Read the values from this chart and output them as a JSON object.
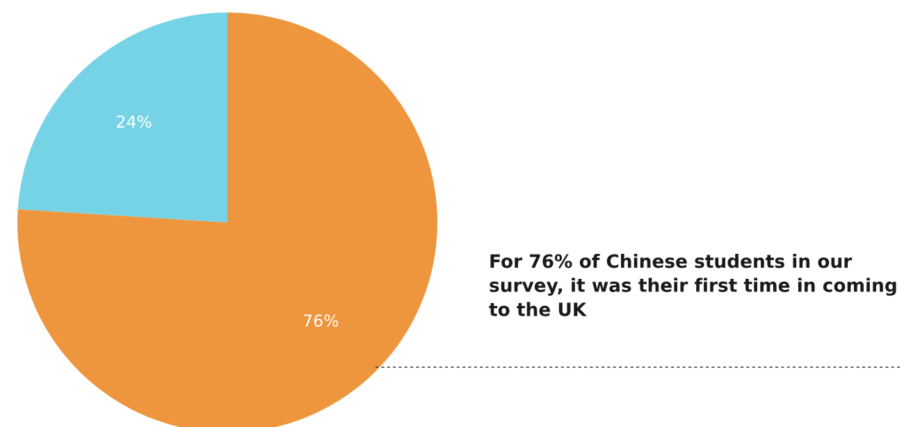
{
  "chart_data": {
    "type": "pie",
    "categories": [
      null,
      null
    ],
    "values": [
      24,
      76
    ],
    "colors": [
      "#76d3e6",
      "#ee963e"
    ],
    "value_labels": [
      "24%",
      "76%"
    ],
    "annotations": [
      "For 76% of Chinese students in our survey, it was their first time in coming to the UK"
    ]
  }
}
